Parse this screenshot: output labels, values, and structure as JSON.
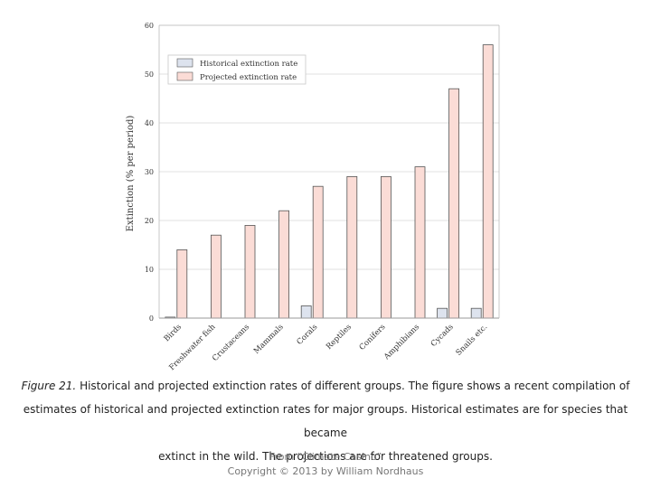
{
  "chart_data": {
    "type": "bar",
    "categories": [
      "Birds",
      "Freshwater fish",
      "Crustaceans",
      "Mammals",
      "Corals",
      "Reptiles",
      "Conifers",
      "Amphibians",
      "Cycads",
      "Snails etc."
    ],
    "series": [
      {
        "name": "Historical extinction rate",
        "values": [
          0.2,
          0,
          0,
          0,
          2.5,
          0,
          0,
          0,
          2.0,
          2.0
        ],
        "color": "#dde3ee"
      },
      {
        "name": "Projected extinction rate",
        "values": [
          14,
          17,
          19,
          22,
          27,
          29,
          29,
          31,
          47,
          56
        ],
        "color": "#fbdcd6"
      }
    ],
    "ylabel": "Extinction (% per period)",
    "ylim": [
      0,
      60
    ],
    "yticks": [
      "0",
      "10",
      "20",
      "30",
      "40",
      "50",
      "60"
    ],
    "grid": true,
    "legend_position": "top-left"
  },
  "caption": {
    "figure_label": "Figure 21.",
    "text_line1": " Historical and projected extinction rates of different groups. The figure shows a recent compilation of",
    "text_line2": "estimates of historical and projected extinction rates for major groups. Historical estimates are for species that became",
    "text_line3": "extinct in the wild. The projections are for threatened groups."
  },
  "credit": {
    "line1": "From “Climate Casino”",
    "line2": "Copyright © 2013 by William Nordhaus"
  }
}
